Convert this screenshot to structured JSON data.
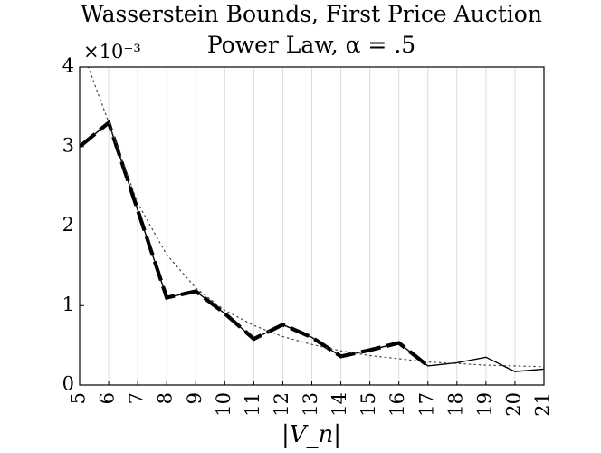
{
  "chart_data": {
    "type": "line",
    "title": "Wasserstein Bounds, First Price Auction",
    "subtitle": "Power Law, α = .5",
    "xlabel": "|V_n|",
    "ylabel": "",
    "scale_label": "×10⁻³",
    "x": [
      5,
      6,
      7,
      8,
      9,
      10,
      11,
      12,
      13,
      14,
      15,
      16,
      17,
      18,
      19,
      20,
      21
    ],
    "xlim": [
      5,
      21
    ],
    "ylim": [
      0,
      4
    ],
    "x_ticks": [
      "5",
      "6",
      "7",
      "8",
      "9",
      "10",
      "11",
      "12",
      "13",
      "14",
      "15",
      "16",
      "17",
      "18",
      "19",
      "20",
      "21"
    ],
    "y_ticks": [
      "0",
      "1",
      "2",
      "3",
      "4"
    ],
    "grid": "vertical",
    "series": [
      {
        "style": "solid",
        "values": [
          3.0,
          3.3,
          2.2,
          1.1,
          1.18,
          0.9,
          0.58,
          0.76,
          0.6,
          0.36,
          0.44,
          0.53,
          0.24,
          0.28,
          0.35,
          0.17,
          0.2
        ]
      },
      {
        "style": "dashed",
        "values": [
          3.0,
          3.3,
          2.2,
          1.1,
          1.18,
          0.9,
          0.58,
          0.76,
          0.6,
          0.36,
          0.44,
          0.53,
          0.24,
          null,
          null,
          null,
          null
        ]
      },
      {
        "style": "dotted",
        "values": [
          4.3,
          3.3,
          2.29,
          1.64,
          1.22,
          0.94,
          0.75,
          0.61,
          0.51,
          0.43,
          0.37,
          0.33,
          0.29,
          0.27,
          0.25,
          0.24,
          0.23
        ]
      }
    ]
  }
}
